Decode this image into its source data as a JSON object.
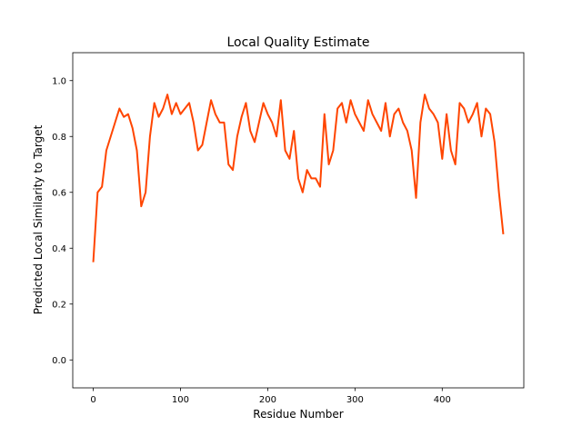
{
  "chart_data": {
    "type": "line",
    "title": "Local Quality Estimate",
    "xlabel": "Residue Number",
    "ylabel": "Predicted Local Similarity to Target",
    "x": [
      0,
      5,
      10,
      15,
      20,
      25,
      30,
      35,
      40,
      45,
      50,
      55,
      60,
      65,
      70,
      75,
      80,
      85,
      90,
      95,
      100,
      105,
      110,
      115,
      120,
      125,
      130,
      135,
      140,
      145,
      150,
      155,
      160,
      165,
      170,
      175,
      180,
      185,
      190,
      195,
      200,
      205,
      210,
      215,
      220,
      225,
      230,
      235,
      240,
      245,
      250,
      255,
      260,
      265,
      270,
      275,
      280,
      285,
      290,
      295,
      300,
      305,
      310,
      315,
      320,
      325,
      330,
      335,
      340,
      345,
      350,
      355,
      360,
      365,
      370,
      375,
      380,
      385,
      390,
      395,
      400,
      405,
      410,
      415,
      420,
      425,
      430,
      435,
      440,
      445,
      450,
      455,
      460,
      465,
      470
    ],
    "series": [
      {
        "name": "Local Quality",
        "color": "#ff4500",
        "values": [
          0.35,
          0.6,
          0.62,
          0.75,
          0.8,
          0.85,
          0.9,
          0.87,
          0.88,
          0.83,
          0.75,
          0.55,
          0.6,
          0.8,
          0.92,
          0.87,
          0.9,
          0.95,
          0.88,
          0.92,
          0.88,
          0.9,
          0.92,
          0.85,
          0.75,
          0.77,
          0.85,
          0.93,
          0.88,
          0.85,
          0.85,
          0.7,
          0.68,
          0.8,
          0.87,
          0.92,
          0.82,
          0.78,
          0.85,
          0.92,
          0.88,
          0.85,
          0.8,
          0.93,
          0.75,
          0.72,
          0.82,
          0.65,
          0.6,
          0.68,
          0.65,
          0.65,
          0.62,
          0.88,
          0.7,
          0.75,
          0.9,
          0.92,
          0.85,
          0.93,
          0.88,
          0.85,
          0.82,
          0.93,
          0.88,
          0.85,
          0.82,
          0.92,
          0.8,
          0.88,
          0.9,
          0.85,
          0.82,
          0.75,
          0.58,
          0.85,
          0.95,
          0.9,
          0.88,
          0.85,
          0.72,
          0.88,
          0.75,
          0.7,
          0.92,
          0.9,
          0.85,
          0.88,
          0.92,
          0.8,
          0.9,
          0.88,
          0.78,
          0.6,
          0.45
        ]
      }
    ],
    "xlim": [
      -23.5,
      493.5
    ],
    "xticks": [
      0,
      100,
      200,
      300,
      400
    ],
    "ylim": [
      -0.1,
      1.1
    ],
    "yticks": [
      {
        "value": 0,
        "label": "0.0"
      },
      0.2,
      0.4,
      0.6,
      0.8,
      {
        "value": 1,
        "label": "1.0"
      }
    ]
  }
}
